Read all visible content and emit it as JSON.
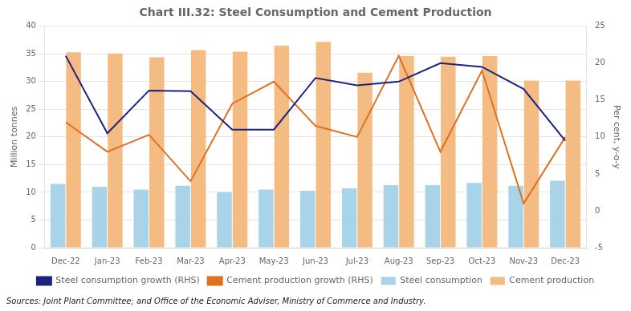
{
  "chart_data": {
    "type": "bar",
    "title": "Chart III.32: Steel Consumption and Cement Production",
    "categories": [
      "Dec-22",
      "Jan-23",
      "Feb-23",
      "Mar-23",
      "Apr-23",
      "May-23",
      "Jun-23",
      "Jul-23",
      "Aug-23",
      "Sep-23",
      "Oct-23",
      "Nov-23",
      "Dec-23"
    ],
    "series": [
      {
        "name": "Steel consumption",
        "type": "bar",
        "color": "#a8d3e8",
        "values": [
          11.5,
          11.0,
          10.5,
          11.2,
          10.0,
          10.5,
          10.3,
          10.7,
          11.3,
          11.3,
          11.7,
          11.2,
          12.1
        ]
      },
      {
        "name": "Cement production",
        "type": "bar",
        "color": "#f4bc82",
        "values": [
          35.3,
          35.1,
          34.4,
          35.7,
          35.4,
          36.5,
          37.2,
          31.6,
          34.6,
          34.5,
          34.6,
          30.2,
          30.2
        ]
      },
      {
        "name": "Steel consumption growth (RHS)",
        "type": "line",
        "axis": "y2",
        "color": "#1a237e",
        "values": [
          21.0,
          10.5,
          16.3,
          16.2,
          11.0,
          11.0,
          18.0,
          17.0,
          17.5,
          20.0,
          19.5,
          16.5,
          9.5
        ]
      },
      {
        "name": "Cement production growth (RHS)",
        "type": "line",
        "axis": "y2",
        "color": "#e07020",
        "values": [
          12.0,
          8.0,
          10.3,
          4.0,
          14.5,
          17.5,
          11.5,
          10.0,
          21.0,
          8.0,
          19.0,
          1.0,
          10.0
        ]
      }
    ],
    "ylabel": "Million tonnes",
    "y2label": "Per cent, y-o-y",
    "ylim": [
      0,
      40
    ],
    "yticks": [
      0,
      5,
      10,
      15,
      20,
      25,
      30,
      35,
      40
    ],
    "y2lim": [
      -5,
      25
    ],
    "y2ticks": [
      -5,
      0,
      5,
      10,
      15,
      20,
      25
    ],
    "grid": true,
    "legend": "bottom",
    "annotations": [
      "Sources: Joint Plant Committee; and Office of the Economic Adviser, Ministry of Commerce and Industry."
    ]
  }
}
